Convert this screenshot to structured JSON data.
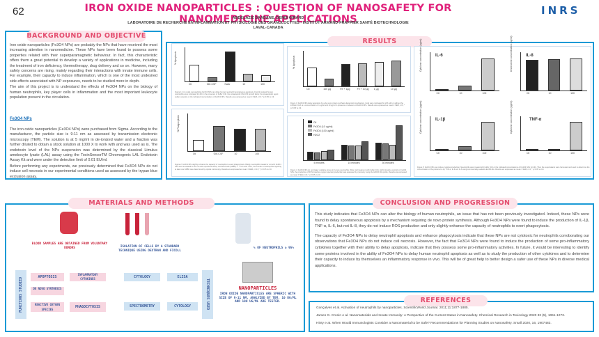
{
  "header": {
    "number": "62",
    "title": "IRON OXIDE NANOPARTICLES : QUESTION OF NANOSAFETY FOR NANOMEDICINE APPLICATIONS",
    "authors": "ABDELAZIZ SAADANE, DENIS GIRARD",
    "lab": "LABORATOIRE DE RECHERCHE EN INFLAMMATION ET PHYSIOLOGIE DES GRANULOCYTES - INSTITUT ARMAND-FRAPPIER SANTÉ BIOTECHNOLOGIE",
    "city": "LAVAL-CANADA",
    "logo": "INRS"
  },
  "background": {
    "title": "BACKGROUND AND OBJECTIVE",
    "p1": "Iron oxide nanoparticles (Fe3O4 NPs) are probably the NPs that have received the most increasing attention in nanomedicine. These NPs have been found to possess some properties related with their superparamagnetic behaviour. In fact, this characteristic offers them a great potential to develop a variety of applications in medicine, including the treatment of iron deficiency, thermotherapy, drug delivery and so on. However, many safety concerns are rising, mainly regarding their interactions with innate immune cells. For example, their capacity to induce inflammation, which is one of the most undesired side effects associated with NP exposures, needs to be studied more in depth.",
    "p2": "The aim of this project is to understand the effects of Fe3O4 NPs on the biology of human neutrophils, key player cells in inflammation and the most important leukocyte population present in the circulation.",
    "sub": "Fe3O4 NPs",
    "p3": "The iron oxide nanoparticles (Fe3O4 NPs) were purchased from Sigma. According to the manufacturer, the particle size is 9-11 nm as assessed by transmission electronic microscopy (TEM). The solution is at 5 mg/ml in de-ionized water and a fraction was further diluted to obtain a stock solution at 1000 X to work with and was used as is. The endotoxin level of the NPs suspension was determined by the classical Limulus amebocyte lysate (LAL) assay using the ToxinSensorTM Chromogenic LAL Endotoxin Assay Kit and were under the detection limit of 0.01 EU/ml.",
    "p4": "Before performing any experiments, we previously determined that Fe3O4 NPs do not induce cell necrosis in our experimental conditions used as assessed by the trypan blue exclusion assay."
  },
  "results": {
    "title": "RESULTS",
    "fig1_caption": "Figure 1: Iron oxide nanoparticles Fe3O4 NPs can delay human neutrophil spontaneous apoptosis. Freshly isolated human neutrophils were incubated for 24h in the presence of buffer (Ctl), the antiapoptotic GM-CSF growth factor, the proapoptotic agent sodium arsenite or the indicated concentrations of Fe3O4 NPs. Results are expressed as mean ± SEM, n=6; * p<0.05 vs Ctl.",
    "fig2_caption": "Figure 2: Fe3O4 NPs slightly enhance the capacity of neutrophils to exert phagocytosis. Briefly, neutrophils treated or not with Fe3O4 NPs were incubated for 30 min with opsonized sheep red blood cells (SRBC). n = 3-5 cells. Then, the number of neutrophils ingesting at least one SRBC was determined by optical microscopy. Results are expressed as mean ± SEM, n=4-5; * p<0.05 vs Ctl.",
    "fig3_caption": "Figure 3: Fe3O4 NPs delay apoptosis by a de novo protein synthesis dependent mechanism. Cells were incubated for 24h with or without the inhibitor CHX at a concentration of 1 µg/ml and 10 µg/ml in presence or absence of Fe3O4 NPs. Results are expressed as mean ± SEM, n=6; * p<0.05 vs Ctl.",
    "fig4_caption": "Figure 4: Fe3O4 NPs do not trigger oxidative stress in human neutrophils. When cell treatment with buffer (Ctl), H2O2 (positive control) or Fe3O4 NPs, the production of ROS (reactive oxygen species) production was assessed by cytometry using the H2DCF-DA probe. Results are expressed as mean ± SEM, n=4; * p<0.05 vs Ctl.",
    "fig5_caption": "Figure 5: Fe3O4 NPs can induce cytokine production. Neutrophils were treated with buffer (Ctl) or the indicated concentrations of Fe3O4 NPs for 24h. Then the supernatants were harvested and used to determine the concentration of the proteins IL-1β, TNF-α, IL-6 and IL-8 using commercially available ELISA kits. Results are expressed as mean ± SEM, n=4; * p<0.05 vs Ctl.",
    "fe_label": "Fe3O4"
  },
  "chart_data": [
    {
      "type": "bar",
      "ylabel": "% Apoptosis",
      "categories": [
        "Ctl",
        "GM-CSF",
        "NaAr",
        "10",
        "100"
      ],
      "values": [
        48,
        12,
        88,
        22,
        18
      ],
      "ylim": [
        0,
        100
      ]
    },
    {
      "type": "bar",
      "ylabel": "% Phagocytosis",
      "categories": [
        "Ctl",
        "GM-CSF",
        "10",
        "100"
      ],
      "values": [
        18,
        40,
        36,
        36
      ],
      "ylim": [
        0,
        60
      ]
    },
    {
      "type": "bar",
      "ylabel": "% Apoptosis",
      "categories": [
        "Ctl",
        "100 µg",
        "Fe + 1µg",
        "Fe + 10 µg",
        "1 µg",
        "10 µg"
      ],
      "values": [
        52,
        22,
        62,
        65,
        68,
        72
      ],
      "ylim": [
        0,
        100
      ]
    },
    {
      "type": "bar",
      "categories": [
        "5 minutes",
        "15 minutes",
        "30 minutes"
      ],
      "series": [
        {
          "name": "Ctl",
          "values": [
            20,
            38,
            42
          ]
        },
        {
          "name": "Fe3O4 (10 ug/ml)",
          "values": [
            18,
            35,
            40
          ]
        },
        {
          "name": "Fe3O4 (100 ug/ml)",
          "values": [
            22,
            36,
            38
          ]
        },
        {
          "name": "H2O2",
          "values": [
            25,
            45,
            85
          ]
        }
      ]
    },
    {
      "type": "bar",
      "title": "IL-6",
      "ylabel": "Cytokine concentration (pg/ml)",
      "categories": [
        "Ctl",
        "10",
        "100"
      ],
      "values": [
        0,
        25,
        160
      ]
    },
    {
      "type": "bar",
      "title": "IL-8",
      "ylabel": "Chemokine concentration (pg/ml)",
      "categories": [
        "Ctl",
        "10",
        "100"
      ],
      "values": [
        480,
        490,
        500
      ]
    },
    {
      "type": "bar",
      "title": "IL-1β",
      "ylabel": "Cytokine concentration (pg/ml)",
      "categories": [
        "Ctl",
        "10",
        "100"
      ],
      "values": [
        0,
        20,
        130
      ]
    },
    {
      "type": "bar",
      "title": "TNF-α",
      "ylabel": "Cytokine concentration (pg/ml)",
      "categories": [
        "Ctl",
        "10",
        "100"
      ],
      "values": [
        0,
        0,
        12
      ]
    }
  ],
  "methods": {
    "title": "MATERIALS AND METHODS",
    "blood": "BLOOD SAMPLES ARE OBTAINED FROM VOLUNTARY DONORS",
    "isolation": "ISOLATION OF CELLS BY A STANDARD TECHNIQUE USING DEXTRAN AND FICOLL",
    "neutrophils": "% OF NEUTROPHILS ≥ 95%",
    "functions": "FUNCTIONS STUDIED",
    "techniques": "TECHNIQUES USED",
    "apoptosis": "APOPTOSIS",
    "inflammatory": "INFLAMMATORY CYTOKINES",
    "denovo": "DE NOVO SYNTHESIS",
    "ros": "REACTIVE OXYGEN SPECIES",
    "phagocytosis": "PHAGOCYTOSIS",
    "cytology": "CYTOLOGY",
    "elisa": "ELISA",
    "spectrometry": "SPECTROMETRY",
    "cytology2": "CYTOLOGY",
    "nanoparticles": "NANOPARTICLES",
    "np_desc": "IRON OXIDE NANOPARTICLES ARE SPHERIC WITH SIZE OF 9-11 NM, ANALYZED BY TEM, 10 UG/ML AND 100 UG/ML ARE TESTED."
  },
  "conclusion": {
    "title": "CONCLUSION AND PROGRESSION",
    "p1": "This study indicates that Fe3O4 NPs can alter the biology of human neutrophils, an issue that has not been previously investigated. Indeed, these NPs were found to delay spontaneous apoptosis by a mechanism requiring de novo protein synthesis. Although Fe3O4 NPs were found to induce the production of IL-1β, TNF-α, IL-6, but not IL-8, they do not induce ROS production and only slightly enhance the capacity of neutrophils to exert phagocytosis.",
    "p2": "The capacity of Fe3O4 NPs to delay neutrophil apoptosis and enhance phagocytosis indicate that these NPs are not cytotoxic for neutrophils corroborating our observations that Fe3O4 NPs do not induce cell necrosis. However, the fact that Fe3O4 NPs were found to induce the production of some pro-inflammatory cytokines together with their ability to delay apoptosis, indicate that they possess some pro-inflammatory activities. In future, it would be interesting to identify some proteins involved in the ability of Fe3O4 NPs to delay human neutrophil apoptosis as well as to study the production of other cytokines and to determine their capacity to induce by themselves an inflammatory response in vivo. This will be of great help to better design a safer use of these NPs in diverse medical applications."
  },
  "references": {
    "title": "REFERENCES",
    "items": [
      "Gonçalves et al. Activation of neutrophils by nanoparticles. ScientificWorld Journal. 2011;11:1877-1885.",
      "James G. Cronin e al. Nanomaterials and Innate Immunity: A Perspective of the Current Status in Nanosafety. Chemical Research in Toxicology 2020 33 (5), 1061-1073.",
      "Hinty e at. When Would Immunologists Consider a Nanomaterial to be Safe? Recommendations for Planning Studies on Nanosafety. Small 2020, 16, 1907483."
    ]
  }
}
